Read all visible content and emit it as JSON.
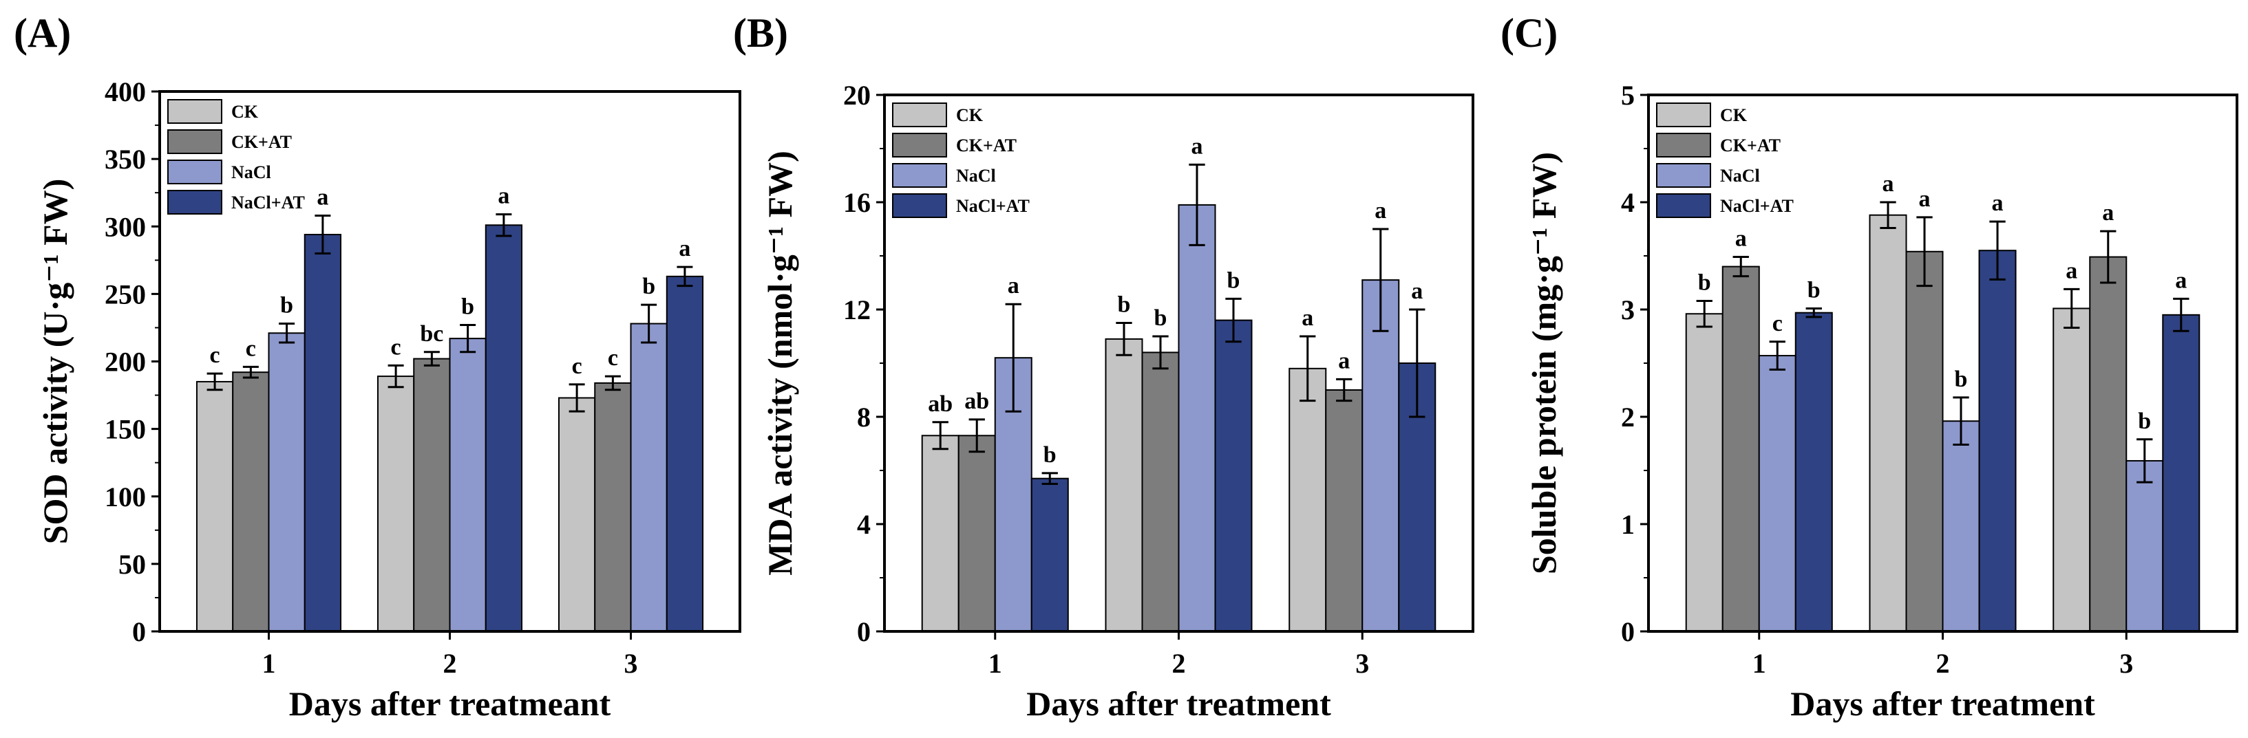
{
  "chart_data": [
    {
      "type": "bar",
      "panel_label": "(A)",
      "xlabel": "Days after treatmeant",
      "ylabel": "SOD activity (U·g⁻¹ FW)",
      "ylim": [
        0,
        400
      ],
      "yticks": [
        "0",
        "50",
        "100",
        "150",
        "200",
        "250",
        "300",
        "350",
        "400"
      ],
      "categories": [
        "1",
        "2",
        "3"
      ],
      "legend_position": "top-left",
      "series": [
        {
          "name": "CK",
          "color": "#c4c4c4",
          "values": [
            185,
            189,
            173
          ],
          "errors": [
            6,
            8,
            10
          ],
          "labels": [
            "c",
            "c",
            "c"
          ]
        },
        {
          "name": "CK+AT",
          "color": "#7d7d7d",
          "values": [
            192,
            202,
            184
          ],
          "errors": [
            4,
            5,
            5
          ],
          "labels": [
            "c",
            "bc",
            "c"
          ]
        },
        {
          "name": "NaCl",
          "color": "#8d99cd",
          "values": [
            221,
            217,
            228
          ],
          "errors": [
            7,
            10,
            14
          ],
          "labels": [
            "b",
            "b",
            "b"
          ]
        },
        {
          "name": "NaCl+AT",
          "color": "#2f4283",
          "values": [
            294,
            301,
            263
          ],
          "errors": [
            14,
            8,
            7
          ],
          "labels": [
            "a",
            "a",
            "a"
          ]
        }
      ]
    },
    {
      "type": "bar",
      "panel_label": "(B)",
      "xlabel": "Days after treatment",
      "ylabel": "MDA activity (nmol·g⁻¹ FW)",
      "ylim": [
        0,
        20
      ],
      "yticks": [
        "0",
        "4",
        "8",
        "12",
        "16",
        "20"
      ],
      "categories": [
        "1",
        "2",
        "3"
      ],
      "legend_position": "top-left",
      "series": [
        {
          "name": "CK",
          "color": "#c4c4c4",
          "values": [
            7.3,
            10.9,
            9.8
          ],
          "errors": [
            0.5,
            0.6,
            1.2
          ],
          "labels": [
            "ab",
            "b",
            "a"
          ]
        },
        {
          "name": "CK+AT",
          "color": "#7d7d7d",
          "values": [
            7.3,
            10.4,
            9.0
          ],
          "errors": [
            0.6,
            0.6,
            0.4
          ],
          "labels": [
            "ab",
            "b",
            "a"
          ]
        },
        {
          "name": "NaCl",
          "color": "#8d99cd",
          "values": [
            10.2,
            15.9,
            13.1
          ],
          "errors": [
            2.0,
            1.5,
            1.9
          ],
          "labels": [
            "a",
            "a",
            "a"
          ]
        },
        {
          "name": "NaCl+AT",
          "color": "#2f4283",
          "values": [
            5.7,
            11.6,
            10.0
          ],
          "errors": [
            0.2,
            0.8,
            2.0
          ],
          "labels": [
            "b",
            "b",
            "a"
          ]
        }
      ]
    },
    {
      "type": "bar",
      "panel_label": "(C)",
      "xlabel": "Days after treatment",
      "ylabel": "Soluble protein (mg·g⁻¹ FW)",
      "ylim": [
        0,
        5
      ],
      "yticks": [
        "0",
        "1",
        "2",
        "3",
        "4",
        "5"
      ],
      "categories": [
        "1",
        "2",
        "3"
      ],
      "legend_position": "top-left",
      "series": [
        {
          "name": "CK",
          "color": "#c4c4c4",
          "values": [
            2.96,
            3.88,
            3.01
          ],
          "errors": [
            0.12,
            0.12,
            0.18
          ],
          "labels": [
            "b",
            "a",
            "a"
          ]
        },
        {
          "name": "CK+AT",
          "color": "#7d7d7d",
          "values": [
            3.4,
            3.54,
            3.49
          ],
          "errors": [
            0.09,
            0.32,
            0.24
          ],
          "labels": [
            "a",
            "a",
            "a"
          ]
        },
        {
          "name": "NaCl",
          "color": "#8d99cd",
          "values": [
            2.57,
            1.96,
            1.59
          ],
          "errors": [
            0.13,
            0.22,
            0.2
          ],
          "labels": [
            "c",
            "b",
            "b"
          ]
        },
        {
          "name": "NaCl+AT",
          "color": "#2f4283",
          "values": [
            2.97,
            3.55,
            2.95
          ],
          "errors": [
            0.04,
            0.27,
            0.15
          ],
          "labels": [
            "b",
            "a",
            "a"
          ]
        }
      ]
    }
  ]
}
